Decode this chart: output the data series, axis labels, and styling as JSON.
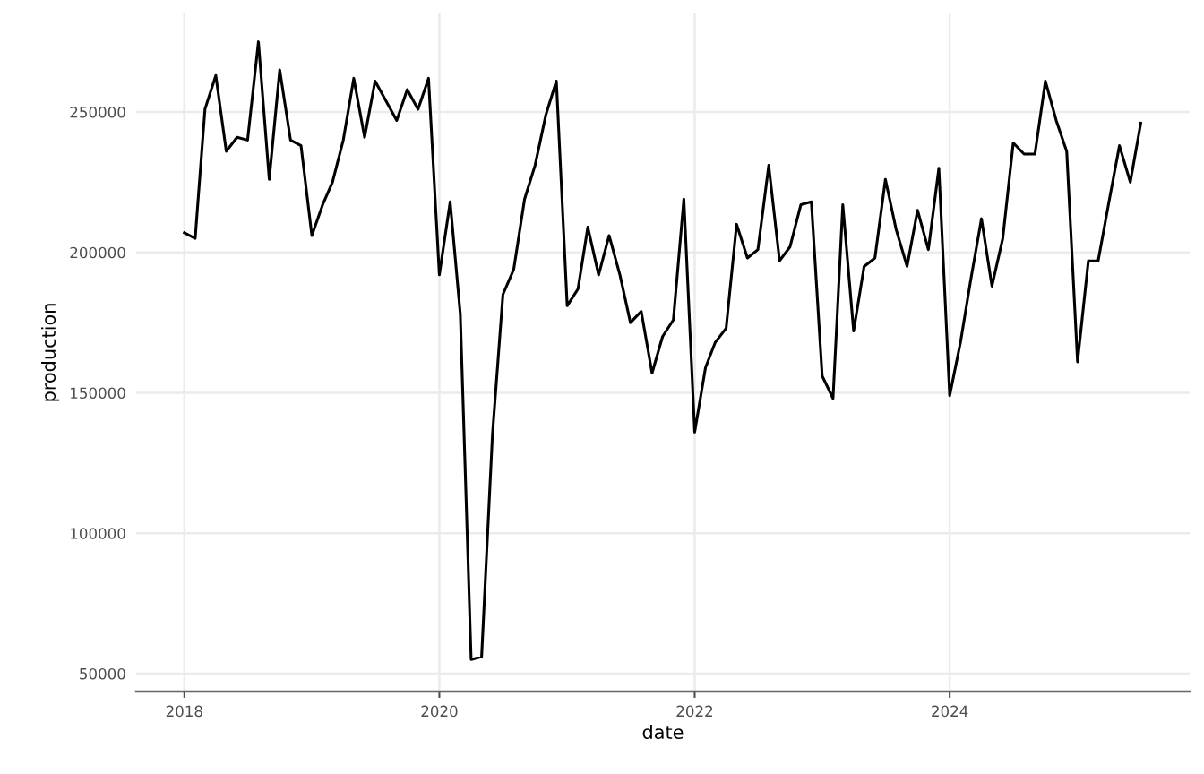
{
  "chart_data": {
    "type": "line",
    "xlabel": "date",
    "ylabel": "production",
    "x": [
      "2018-01",
      "2018-02",
      "2018-03",
      "2018-04",
      "2018-05",
      "2018-06",
      "2018-07",
      "2018-08",
      "2018-09",
      "2018-10",
      "2018-11",
      "2018-12",
      "2019-01",
      "2019-02",
      "2019-03",
      "2019-04",
      "2019-05",
      "2019-06",
      "2019-07",
      "2019-08",
      "2019-09",
      "2019-10",
      "2019-11",
      "2019-12",
      "2020-01",
      "2020-02",
      "2020-03",
      "2020-04",
      "2020-05",
      "2020-06",
      "2020-07",
      "2020-08",
      "2020-09",
      "2020-10",
      "2020-11",
      "2020-12",
      "2021-01",
      "2021-02",
      "2021-03",
      "2021-04",
      "2021-05",
      "2021-06",
      "2021-07",
      "2021-08",
      "2021-09",
      "2021-10",
      "2021-11",
      "2021-12",
      "2022-01",
      "2022-02",
      "2022-03",
      "2022-04",
      "2022-05",
      "2022-06",
      "2022-07",
      "2022-08",
      "2022-09",
      "2022-10",
      "2022-11",
      "2022-12",
      "2023-01",
      "2023-02",
      "2023-03",
      "2023-04",
      "2023-05",
      "2023-06",
      "2023-07",
      "2023-08",
      "2023-09",
      "2023-10",
      "2023-11",
      "2023-12",
      "2024-01",
      "2024-02",
      "2024-03",
      "2024-04",
      "2024-05",
      "2024-06",
      "2024-07",
      "2024-08",
      "2024-09",
      "2024-10",
      "2024-11",
      "2024-12",
      "2025-01",
      "2025-02",
      "2025-03",
      "2025-04",
      "2025-05",
      "2025-06",
      "2025-07"
    ],
    "series": [
      {
        "color": "#000000",
        "values": [
          207000,
          205000,
          251000,
          263000,
          236000,
          241000,
          240000,
          275000,
          226000,
          265000,
          240000,
          238000,
          206000,
          217000,
          225000,
          240000,
          262000,
          241000,
          261000,
          254000,
          247000,
          258000,
          251000,
          262000,
          192000,
          218000,
          178000,
          55000,
          56000,
          135000,
          185000,
          194000,
          219000,
          231000,
          249000,
          261000,
          181000,
          187000,
          209000,
          192000,
          206000,
          192000,
          175000,
          179000,
          157000,
          170000,
          176000,
          219000,
          136000,
          159000,
          168000,
          173000,
          210000,
          198000,
          201000,
          231000,
          197000,
          202000,
          217000,
          218000,
          156000,
          148000,
          217000,
          172000,
          195000,
          198000,
          226000,
          208000,
          195000,
          215000,
          201000,
          230000,
          149000,
          168000,
          190000,
          212000,
          188000,
          205000,
          239000,
          235000,
          235000,
          261000,
          247000,
          236000,
          161000,
          197000,
          197000,
          218000,
          238000,
          225000,
          246000
        ]
      }
    ],
    "xlim": [
      "2017-08-16",
      "2025-11-18"
    ],
    "ylim": [
      43600,
      285100
    ],
    "xticks": [
      {
        "value": "2018",
        "label": "2018"
      },
      {
        "value": "2020",
        "label": "2020"
      },
      {
        "value": "2022",
        "label": "2022"
      },
      {
        "value": "2024",
        "label": "2024"
      }
    ],
    "yticks": [
      50000,
      100000,
      150000,
      200000,
      250000
    ],
    "grid": true,
    "line_style": "solid"
  }
}
